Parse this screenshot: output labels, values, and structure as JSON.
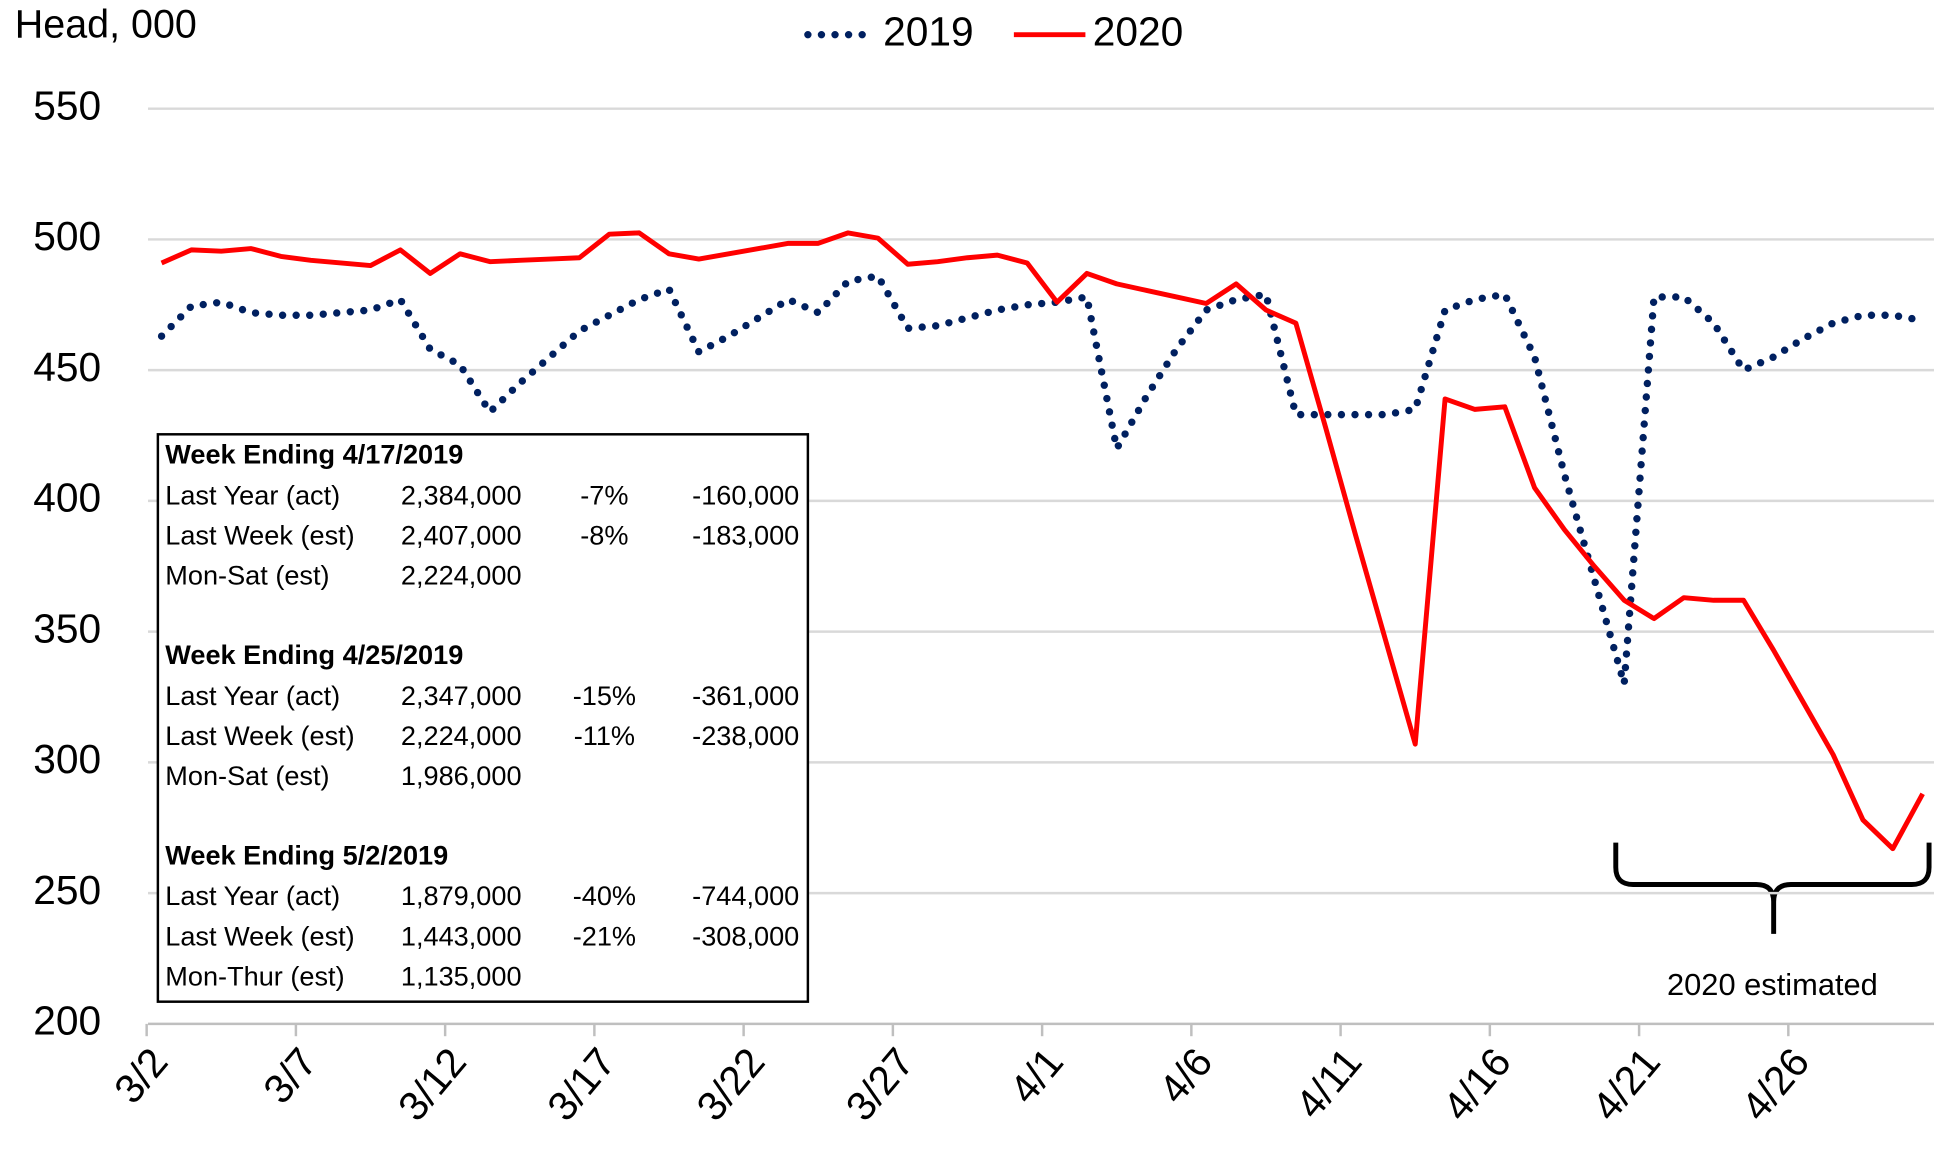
{
  "chart_data": {
    "type": "line",
    "y_label": "Head, 000",
    "categories": [
      "3/2",
      null,
      null,
      null,
      null,
      "3/7",
      null,
      null,
      null,
      null,
      "3/12",
      null,
      null,
      null,
      null,
      "3/17",
      null,
      null,
      null,
      null,
      "3/22",
      null,
      null,
      null,
      null,
      "3/27",
      null,
      null,
      null,
      null,
      "4/1",
      null,
      null,
      null,
      null,
      "4/6",
      null,
      null,
      null,
      null,
      "4/11",
      null,
      null,
      null,
      null,
      "4/16",
      null,
      null,
      null,
      null,
      "4/21",
      null,
      null,
      null,
      null,
      "4/26",
      null,
      null,
      null,
      null
    ],
    "series": [
      {
        "name": "2019",
        "color": "#002060",
        "style": "dotted",
        "values": [
          463,
          474.5,
          476,
          472,
          471,
          471,
          472,
          473,
          477,
          458,
          452,
          434,
          445,
          455,
          465,
          471,
          477,
          481,
          457,
          463,
          470,
          477,
          472,
          484,
          486,
          466,
          467,
          470,
          473,
          475,
          476,
          478,
          420,
          440,
          458,
          473,
          477,
          479,
          433,
          433,
          433,
          433,
          435,
          473,
          477,
          479,
          455,
          410,
          370,
          330,
          478,
          478,
          468,
          450,
          455,
          462,
          468,
          471,
          471,
          469
        ]
      },
      {
        "name": "2020",
        "color": "#ff0000",
        "style": "solid",
        "values": [
          491,
          496,
          495.5,
          496.5,
          493.5,
          492,
          491,
          490,
          496,
          487,
          494.5,
          491.5,
          492,
          492.5,
          493,
          502,
          502.5,
          494.5,
          492.5,
          494.5,
          496.5,
          498.5,
          498.5,
          502.5,
          500.5,
          490.5,
          491.5,
          493,
          494,
          491,
          476,
          487,
          483,
          480.5,
          478,
          475.5,
          483,
          473,
          468,
          428,
          387,
          347,
          307,
          439,
          435,
          436,
          405,
          389,
          375,
          362,
          355,
          363,
          362,
          362,
          343,
          323,
          303,
          278,
          267,
          288
        ]
      }
    ],
    "ylim": [
      200,
      550
    ],
    "yticks": [
      200,
      250,
      300,
      350,
      400,
      450,
      500,
      550
    ],
    "grid": true,
    "legend": "top",
    "annotation": "2020 estimated",
    "info_box": [
      {
        "title": "Week Ending 4/17/2019",
        "rows": [
          [
            "Last Year (act)",
            "2,384,000",
            "-7%",
            "-160,000"
          ],
          [
            "Last Week (est)",
            "2,407,000",
            "-8%",
            "-183,000"
          ],
          [
            "Mon-Sat (est)",
            "2,224,000"
          ]
        ]
      },
      {
        "title": "Week Ending 4/25/2019",
        "rows": [
          [
            "Last Year (act)",
            "2,347,000",
            "-15%",
            "-361,000"
          ],
          [
            "Last Week (est)",
            "2,224,000",
            "-11%",
            "-238,000"
          ],
          [
            "Mon-Sat (est)",
            "1,986,000"
          ]
        ]
      },
      {
        "title": "Week Ending 5/2/2019",
        "rows": [
          [
            "Last Year (act)",
            "1,879,000",
            "-40%",
            "-744,000"
          ],
          [
            "Last Week (est)",
            "1,443,000",
            "-21%",
            "-308,000"
          ],
          [
            "Mon-Thur (est)",
            "1,135,000"
          ]
        ]
      }
    ]
  }
}
